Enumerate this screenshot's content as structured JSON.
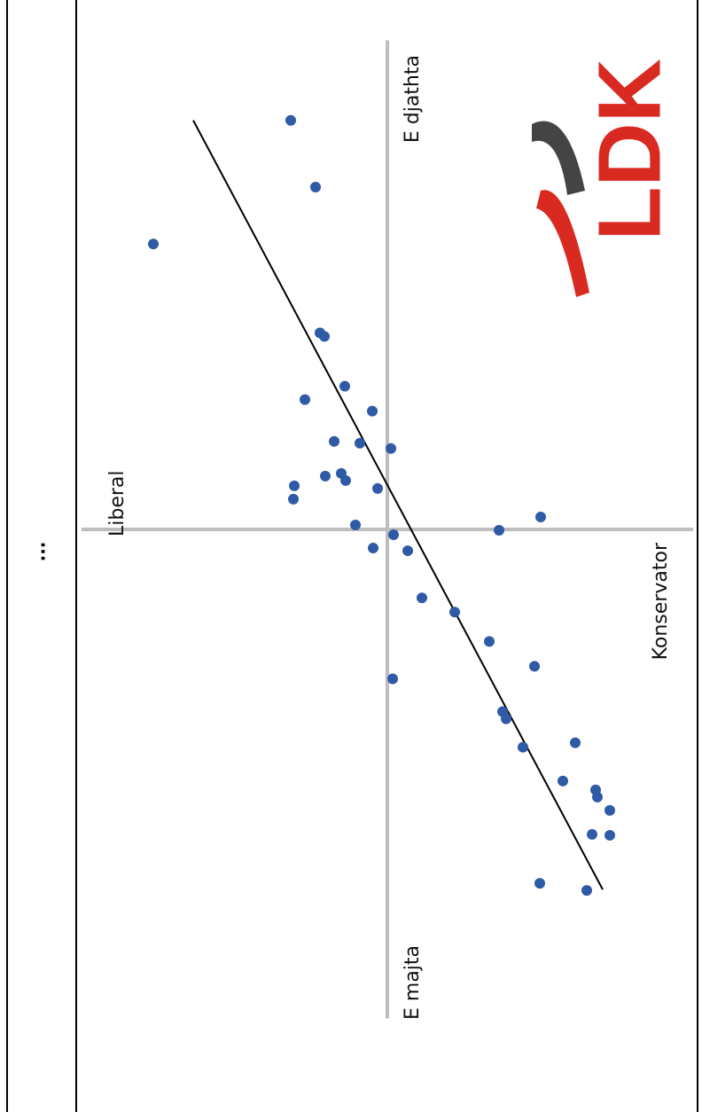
{
  "ellipsis": "...",
  "chart_data": {
    "type": "scatter",
    "x_left_label": "E majta",
    "x_right_label": "E djathta",
    "y_top_label": "Liberal",
    "y_bottom_label": "Konservator",
    "logo": "LDK",
    "xlim": [
      -11,
      11
    ],
    "ylim": [
      -6.9,
      6.9
    ],
    "color": "#2f5aa6",
    "trend_line": {
      "x": [
        -8.1,
        9.2
      ],
      "y": [
        -4.86,
        4.38
      ],
      "color": "#000000"
    },
    "x": [
      9.2,
      7.7,
      6.42,
      4.42,
      4.34,
      3.22,
      2.92,
      2.66,
      1.98,
      1.94,
      1.82,
      1.2,
      1.26,
      1.1,
      0.98,
      0.68,
      0.92,
      0.28,
      0.1,
      -0.02,
      -0.12,
      -0.42,
      -0.48,
      -1.54,
      -1.86,
      -2.52,
      -3.08,
      -3.36,
      -4.1,
      -4.26,
      -4.9,
      -4.8,
      -5.66,
      -5.86,
      -6.02,
      -6.32,
      -6.86,
      -6.88,
      -7.96,
      -8.12
    ],
    "values": [
      2.18,
      1.62,
      5.28,
      1.52,
      1.42,
      0.96,
      1.86,
      0.34,
      1.2,
      0.62,
      -0.08,
      1.4,
      1.04,
      0.94,
      2.1,
      2.12,
      0.22,
      -3.46,
      0.72,
      -2.52,
      -0.14,
      0.32,
      -0.46,
      -0.78,
      -1.52,
      -2.3,
      -3.32,
      -0.12,
      -2.6,
      -2.68,
      -3.06,
      -4.24,
      -3.96,
      -4.7,
      -4.74,
      -5.02,
      -4.62,
      -5.02,
      -3.44,
      -4.5
    ]
  }
}
